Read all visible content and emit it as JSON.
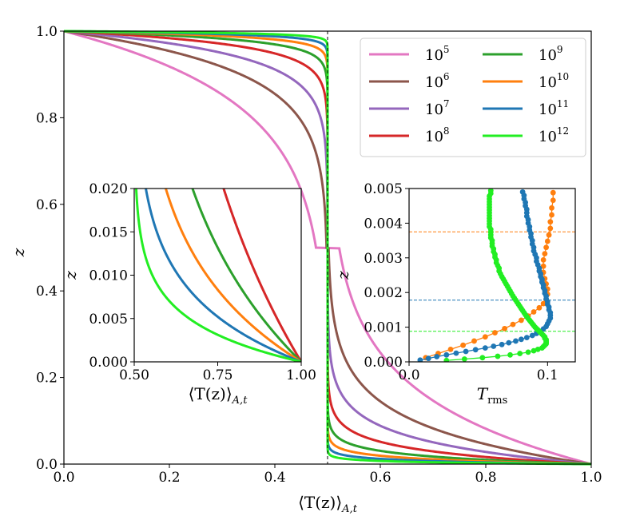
{
  "chart_data": [
    {
      "type": "line",
      "id": "main",
      "xlabel_main": "⟨T(z)⟩",
      "xlabel_sub": "A,t",
      "ylabel": "z",
      "xlim": [
        0.0,
        1.0
      ],
      "ylim": [
        0.0,
        1.0
      ],
      "xticks": [
        "0.0",
        "0.2",
        "0.4",
        "0.6",
        "0.8",
        "1.0"
      ],
      "yticks": [
        "0.0",
        "0.2",
        "0.4",
        "0.6",
        "0.8",
        "1.0"
      ],
      "vline_x": 0.5,
      "series": [
        {
          "name": "Ra=10^5",
          "base": "10",
          "exp": "5",
          "color": "#e377c2",
          "delta": 0.16
        },
        {
          "name": "Ra=10^6",
          "base": "10",
          "exp": "6",
          "color": "#8c564b",
          "delta": 0.09
        },
        {
          "name": "Ra=10^7",
          "base": "10",
          "exp": "7",
          "color": "#9467bd",
          "delta": 0.055
        },
        {
          "name": "Ra=10^8",
          "base": "10",
          "exp": "8",
          "color": "#d62728",
          "delta": 0.032
        },
        {
          "name": "Ra=10^9",
          "base": "10",
          "exp": "9",
          "color": "#2ca02c",
          "delta": 0.019
        },
        {
          "name": "Ra=10^10",
          "base": "10",
          "exp": "10",
          "color": "#ff7f0e",
          "delta": 0.012
        },
        {
          "name": "Ra=10^11",
          "base": "10",
          "exp": "11",
          "color": "#1f77b4",
          "delta": 0.0075
        },
        {
          "name": "Ra=10^12",
          "base": "10",
          "exp": "12",
          "color": "#22ee22",
          "delta": 0.0045
        }
      ],
      "legend": "top-right, 2 columns"
    },
    {
      "type": "line",
      "id": "inset_left",
      "xlabel_main": "⟨T(z)⟩",
      "xlabel_sub": "A,t",
      "ylabel": "z",
      "xlim": [
        0.5,
        1.0
      ],
      "ylim": [
        0.0,
        0.02
      ],
      "xticks": [
        "0.50",
        "0.75",
        "1.00"
      ],
      "yticks": [
        "0.000",
        "0.005",
        "0.010",
        "0.015",
        "0.020"
      ],
      "series": [
        {
          "name": "10^8",
          "color": "#d62728",
          "delta": 0.032
        },
        {
          "name": "10^9",
          "color": "#2ca02c",
          "delta": 0.019
        },
        {
          "name": "10^10",
          "color": "#ff7f0e",
          "delta": 0.012
        },
        {
          "name": "10^11",
          "color": "#1f77b4",
          "delta": 0.0075
        },
        {
          "name": "10^12",
          "color": "#22ee22",
          "delta": 0.0045
        }
      ]
    },
    {
      "type": "line",
      "id": "inset_right",
      "xlabel_main": "T",
      "xlabel_sub": "rms",
      "ylabel": "z",
      "xlim": [
        0.0,
        0.12
      ],
      "ylim": [
        0.0,
        0.005
      ],
      "xticks": [
        "0.0",
        "0.1"
      ],
      "yticks": [
        "0.000",
        "0.001",
        "0.002",
        "0.003",
        "0.004",
        "0.005"
      ],
      "hlines": [
        {
          "y": 0.00375,
          "color": "#ff7f0e"
        },
        {
          "y": 0.00178,
          "color": "#1f77b4"
        },
        {
          "y": 0.00088,
          "color": "#22ee22"
        }
      ],
      "series": [
        {
          "name": "10^10",
          "color": "#ff7f0e",
          "points": [
            [
              0.012,
              0.00012
            ],
            [
              0.021,
              0.00024
            ],
            [
              0.03,
              0.00036
            ],
            [
              0.039,
              0.00048
            ],
            [
              0.047,
              0.0006
            ],
            [
              0.055,
              0.00072
            ],
            [
              0.062,
              0.00084
            ],
            [
              0.069,
              0.00096
            ],
            [
              0.075,
              0.00108
            ],
            [
              0.081,
              0.0012
            ],
            [
              0.086,
              0.00132
            ],
            [
              0.09,
              0.00144
            ],
            [
              0.094,
              0.00156
            ],
            [
              0.097,
              0.00168
            ],
            [
              0.099,
              0.0018
            ],
            [
              0.1,
              0.00195
            ],
            [
              0.1,
              0.0021
            ],
            [
              0.099,
              0.00225
            ],
            [
              0.098,
              0.0024
            ],
            [
              0.097,
              0.00258
            ],
            [
              0.097,
              0.00276
            ],
            [
              0.097,
              0.00294
            ],
            [
              0.098,
              0.00312
            ],
            [
              0.099,
              0.0033
            ],
            [
              0.1,
              0.00348
            ],
            [
              0.101,
              0.00366
            ],
            [
              0.102,
              0.00385
            ],
            [
              0.102,
              0.00404
            ],
            [
              0.103,
              0.00424
            ],
            [
              0.103,
              0.00444
            ],
            [
              0.104,
              0.00466
            ],
            [
              0.104,
              0.00488
            ]
          ]
        },
        {
          "name": "10^11",
          "color": "#1f77b4",
          "points": [
            [
              0.008,
              5e-05
            ],
            [
              0.014,
              0.0001
            ],
            [
              0.02,
              0.00015
            ],
            [
              0.027,
              0.0002
            ],
            [
              0.034,
              0.00025
            ],
            [
              0.041,
              0.0003
            ],
            [
              0.048,
              0.00035
            ],
            [
              0.055,
              0.0004
            ],
            [
              0.061,
              0.00045
            ],
            [
              0.067,
              0.0005
            ],
            [
              0.072,
              0.00055
            ],
            [
              0.077,
              0.0006
            ],
            [
              0.081,
              0.00065
            ],
            [
              0.085,
              0.0007
            ],
            [
              0.089,
              0.00076
            ],
            [
              0.092,
              0.00082
            ],
            [
              0.095,
              0.00088
            ],
            [
              0.097,
              0.00095
            ],
            [
              0.099,
              0.00102
            ],
            [
              0.1,
              0.0011
            ],
            [
              0.101,
              0.00118
            ],
            [
              0.102,
              0.00126
            ],
            [
              0.102,
              0.00134
            ],
            [
              0.102,
              0.00142
            ],
            [
              0.101,
              0.0015
            ],
            [
              0.101,
              0.00158
            ],
            [
              0.1,
              0.00166
            ],
            [
              0.1,
              0.00174
            ],
            [
              0.099,
              0.00182
            ],
            [
              0.099,
              0.0019
            ],
            [
              0.098,
              0.00198
            ],
            [
              0.098,
              0.00206
            ],
            [
              0.097,
              0.00214
            ],
            [
              0.097,
              0.00222
            ],
            [
              0.096,
              0.0023
            ],
            [
              0.096,
              0.00238
            ],
            [
              0.095,
              0.00246
            ],
            [
              0.095,
              0.00254
            ],
            [
              0.094,
              0.00262
            ],
            [
              0.094,
              0.0027
            ],
            [
              0.093,
              0.0028
            ],
            [
              0.092,
              0.0029
            ],
            [
              0.092,
              0.003
            ],
            [
              0.091,
              0.0031
            ],
            [
              0.09,
              0.0032
            ],
            [
              0.09,
              0.0033
            ],
            [
              0.089,
              0.0034
            ],
            [
              0.089,
              0.0035
            ],
            [
              0.088,
              0.0036
            ],
            [
              0.088,
              0.0037
            ],
            [
              0.087,
              0.0038
            ],
            [
              0.087,
              0.0039
            ],
            [
              0.086,
              0.004
            ],
            [
              0.086,
              0.0041
            ],
            [
              0.085,
              0.0042
            ],
            [
              0.085,
              0.0043
            ],
            [
              0.085,
              0.0044
            ],
            [
              0.084,
              0.0045
            ],
            [
              0.084,
              0.0046
            ],
            [
              0.083,
              0.0047
            ],
            [
              0.083,
              0.0048
            ],
            [
              0.082,
              0.0049
            ]
          ]
        },
        {
          "name": "10^12",
          "color": "#22ee22",
          "points": [
            [
              0.027,
              4e-05
            ],
            [
              0.04,
              8e-05
            ],
            [
              0.053,
              0.00012
            ],
            [
              0.064,
              0.00016
            ],
            [
              0.073,
              0.0002
            ],
            [
              0.08,
              0.00024
            ],
            [
              0.086,
              0.00028
            ],
            [
              0.09,
              0.00032
            ],
            [
              0.093,
              0.00036
            ],
            [
              0.096,
              0.0004
            ],
            [
              0.097,
              0.00044
            ],
            [
              0.098,
              0.00048
            ],
            [
              0.099,
              0.00052
            ],
            [
              0.099,
              0.00056
            ],
            [
              0.099,
              0.0006
            ],
            [
              0.099,
              0.00064
            ],
            [
              0.098,
              0.00068
            ],
            [
              0.098,
              0.00072
            ],
            [
              0.097,
              0.00076
            ],
            [
              0.096,
              0.0008
            ],
            [
              0.095,
              0.00084
            ],
            [
              0.094,
              0.00088
            ],
            [
              0.093,
              0.00092
            ],
            [
              0.092,
              0.00096
            ],
            [
              0.091,
              0.001
            ],
            [
              0.09,
              0.00105
            ],
            [
              0.089,
              0.0011
            ],
            [
              0.088,
              0.00115
            ],
            [
              0.087,
              0.0012
            ],
            [
              0.086,
              0.00125
            ],
            [
              0.085,
              0.0013
            ],
            [
              0.084,
              0.00136
            ],
            [
              0.083,
              0.00142
            ],
            [
              0.082,
              0.00148
            ],
            [
              0.081,
              0.00154
            ],
            [
              0.08,
              0.0016
            ],
            [
              0.079,
              0.00166
            ],
            [
              0.078,
              0.00172
            ],
            [
              0.077,
              0.00178
            ],
            [
              0.076,
              0.00184
            ],
            [
              0.075,
              0.0019
            ],
            [
              0.074,
              0.00197
            ],
            [
              0.073,
              0.00204
            ],
            [
              0.072,
              0.00211
            ],
            [
              0.071,
              0.00218
            ],
            [
              0.07,
              0.00225
            ],
            [
              0.069,
              0.00232
            ],
            [
              0.068,
              0.00239
            ],
            [
              0.067,
              0.00246
            ],
            [
              0.066,
              0.00254
            ],
            [
              0.065,
              0.00262
            ],
            [
              0.065,
              0.0027
            ],
            [
              0.064,
              0.00278
            ],
            [
              0.063,
              0.00286
            ],
            [
              0.063,
              0.00294
            ],
            [
              0.062,
              0.00302
            ],
            [
              0.062,
              0.0031
            ],
            [
              0.061,
              0.00318
            ],
            [
              0.061,
              0.00326
            ],
            [
              0.06,
              0.00334
            ],
            [
              0.06,
              0.00342
            ],
            [
              0.06,
              0.0035
            ],
            [
              0.059,
              0.00358
            ],
            [
              0.059,
              0.00366
            ],
            [
              0.059,
              0.00374
            ],
            [
              0.059,
              0.00382
            ],
            [
              0.058,
              0.0039
            ],
            [
              0.058,
              0.00398
            ],
            [
              0.058,
              0.00406
            ],
            [
              0.058,
              0.00414
            ],
            [
              0.058,
              0.00422
            ],
            [
              0.058,
              0.0043
            ],
            [
              0.058,
              0.00438
            ],
            [
              0.058,
              0.00446
            ],
            [
              0.058,
              0.00454
            ],
            [
              0.058,
              0.00462
            ],
            [
              0.058,
              0.0047
            ],
            [
              0.058,
              0.00478
            ],
            [
              0.059,
              0.00486
            ],
            [
              0.059,
              0.00494
            ]
          ]
        }
      ]
    }
  ]
}
